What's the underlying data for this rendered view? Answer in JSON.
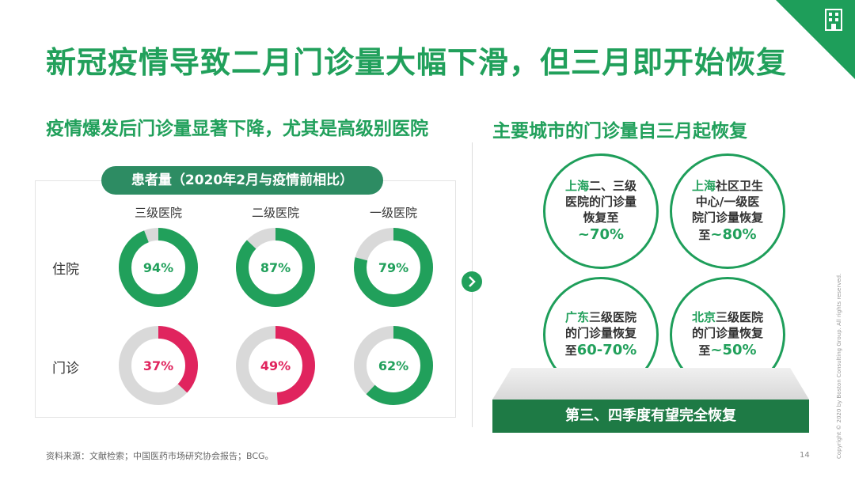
{
  "title": "新冠疫情导致二月门诊量大幅下滑，但三月即开始恢复",
  "left": {
    "subtitle": "疫情爆发后门诊量显著下降，尤其是高级别医院",
    "pill": "患者量（2020年2月与疫情前相比）",
    "columns": [
      "三级医院",
      "二级医院",
      "一级医院"
    ],
    "rows": [
      "住院",
      "门诊"
    ]
  },
  "right": {
    "subtitle": "主要城市的门诊量自三月起恢复",
    "circles": [
      {
        "city": "上海",
        "line1": "二、三级",
        "line2": "医院的门诊量",
        "line3": "恢复至",
        "prefix": "",
        "value": "~70%"
      },
      {
        "city": "上海",
        "line1": "社区卫生",
        "line2": "中心/一级医",
        "line3": "院门诊量恢复",
        "prefix": "至",
        "value": "~80%"
      },
      {
        "city": "广东",
        "line1": "三级医院",
        "line2": "的门诊量恢复",
        "line3": "",
        "prefix": "至",
        "value": "60-70%"
      },
      {
        "city": "北京",
        "line1": "三级医院",
        "line2": "的门诊量恢复",
        "line3": "",
        "prefix": "至",
        "value": "~50%"
      }
    ],
    "banner": "第三、四季度有望完全恢复"
  },
  "source": "资料来源：文献检索；中国医药市场研究协会报告；BCG。",
  "page_number": "14",
  "copyright": "Copyright © 2020 by Boston Consulting Group. All rights reserved.",
  "colors": {
    "green": "#21a05b",
    "red": "#e0245e",
    "gray": "#d9d9d9"
  },
  "chart_data": {
    "type": "donut",
    "categories": [
      "三级医院",
      "二级医院",
      "一级医院"
    ],
    "series": [
      {
        "name": "住院",
        "values": [
          94,
          87,
          79
        ],
        "labels": [
          "94%",
          "87%",
          "79%"
        ]
      },
      {
        "name": "门诊",
        "values": [
          37,
          49,
          62
        ],
        "labels": [
          "37%",
          "49%",
          "62%"
        ]
      }
    ],
    "ylim": [
      0,
      100
    ]
  }
}
